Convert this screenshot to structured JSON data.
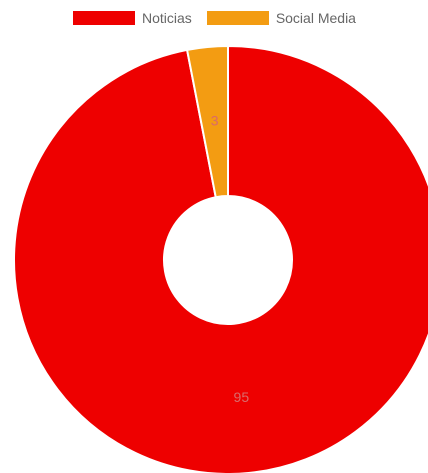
{
  "legend": [
    {
      "label": "Noticias",
      "color": "#ee0000"
    },
    {
      "label": "Social Media",
      "color": "#f39c12"
    }
  ],
  "chart_data": {
    "type": "pie",
    "variant": "doughnut",
    "legend_position": "top",
    "categories": [
      "Noticias",
      "Social Media"
    ],
    "values": [
      95,
      3
    ],
    "value_labels": [
      "95",
      "3"
    ],
    "colors": [
      "#ee0000",
      "#f39c12"
    ]
  }
}
